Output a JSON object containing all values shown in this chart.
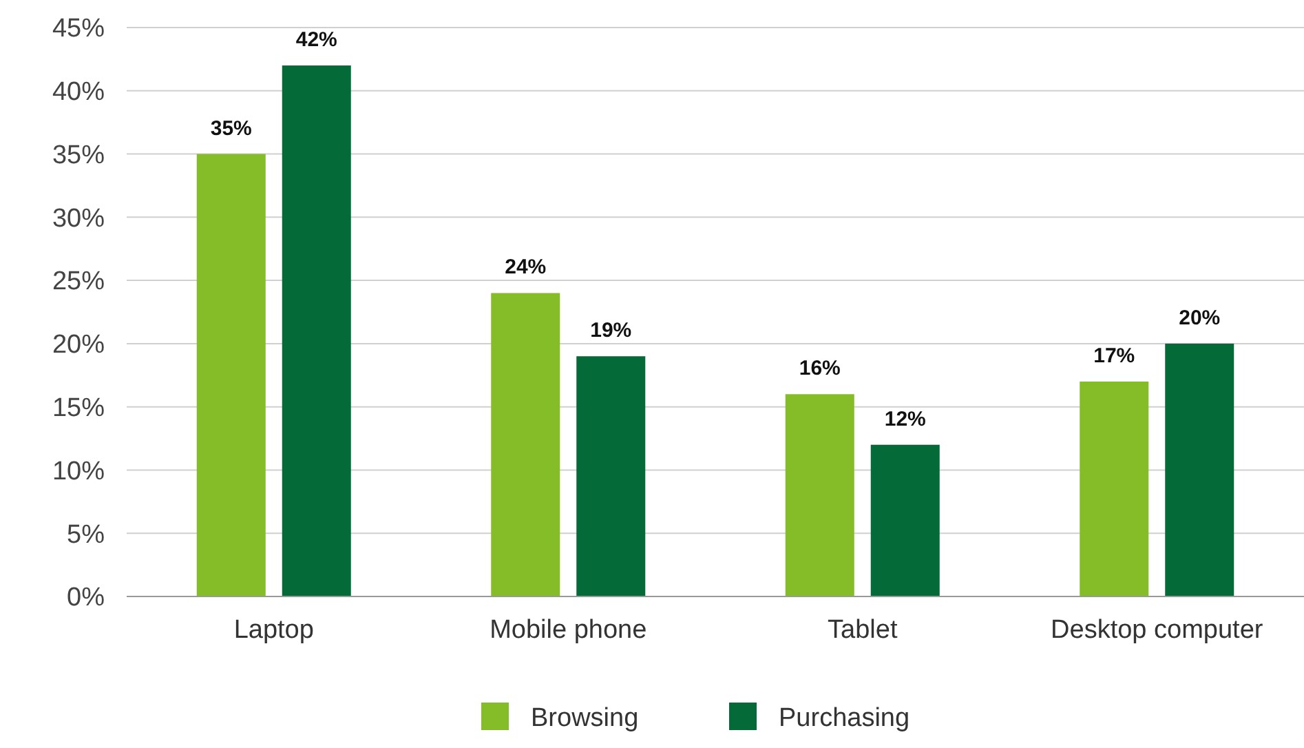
{
  "chart_data": {
    "type": "bar",
    "categories": [
      "Laptop",
      "Mobile phone",
      "Tablet",
      "Desktop computer"
    ],
    "series": [
      {
        "name": "Browsing",
        "color": "#84bd27",
        "values": [
          35,
          24,
          16,
          17
        ]
      },
      {
        "name": "Purchasing",
        "color": "#046a38",
        "values": [
          42,
          19,
          12,
          20
        ]
      }
    ],
    "ylim": [
      0,
      45
    ],
    "yticks": [
      {
        "value": 0,
        "label": "0%"
      },
      {
        "value": 5,
        "label": "5%"
      },
      {
        "value": 10,
        "label": "10%"
      },
      {
        "value": 15,
        "label": "15%"
      },
      {
        "value": 20,
        "label": "20%"
      },
      {
        "value": 25,
        "label": "25%"
      },
      {
        "value": 30,
        "label": "30%"
      },
      {
        "value": 35,
        "label": "35%"
      },
      {
        "value": 40,
        "label": "40%"
      },
      {
        "value": 45,
        "label": "45%"
      }
    ],
    "value_labels": [
      [
        "35%",
        "24%",
        "16%",
        "17%"
      ],
      [
        "42%",
        "19%",
        "12%",
        "20%"
      ]
    ],
    "grid": "y",
    "legend": "bottom"
  }
}
